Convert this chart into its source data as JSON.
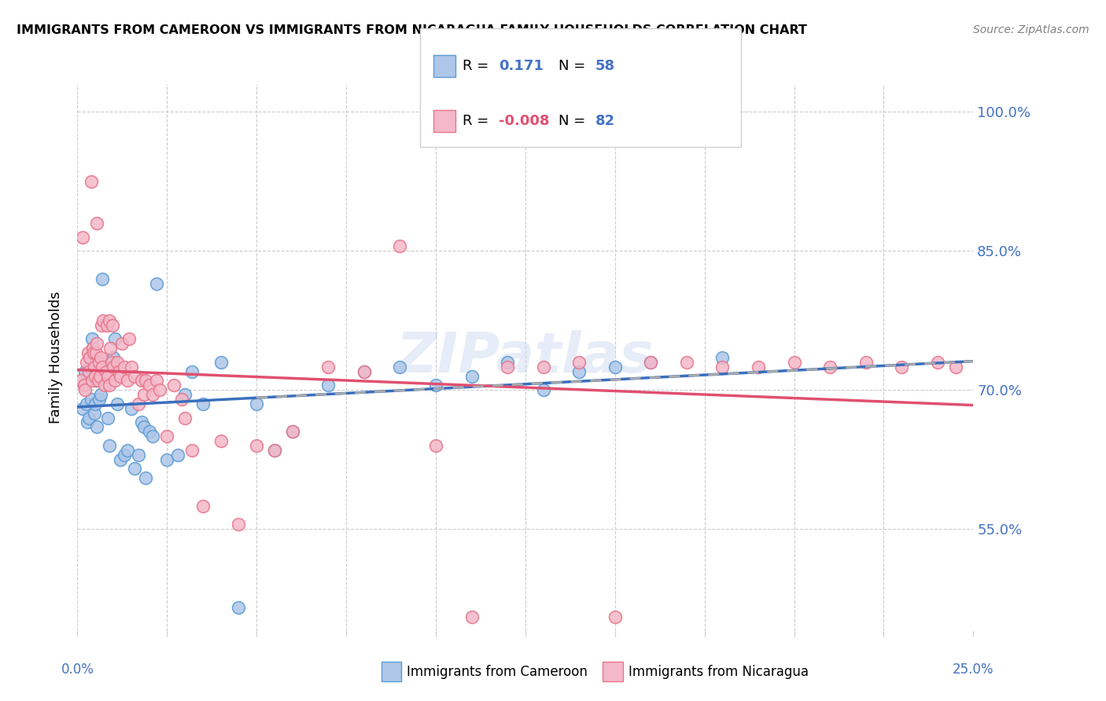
{
  "title": "IMMIGRANTS FROM CAMEROON VS IMMIGRANTS FROM NICARAGUA FAMILY HOUSEHOLDS CORRELATION CHART",
  "source": "Source: ZipAtlas.com",
  "ylabel": "Family Households",
  "yticks": [
    55.0,
    70.0,
    85.0,
    100.0
  ],
  "ytick_labels": [
    "55.0%",
    "70.0%",
    "85.0%",
    "100.0%"
  ],
  "xmin": 0.0,
  "xmax": 25.0,
  "ymin": 44.0,
  "ymax": 103.0,
  "cameroon_R": 0.171,
  "cameroon_N": 58,
  "nicaragua_R": -0.008,
  "nicaragua_N": 82,
  "cameroon_color": "#aec6e8",
  "nicaragua_color": "#f4b8c8",
  "cameroon_edge": "#5b9bd5",
  "nicaragua_edge": "#e8748a",
  "trend_cameroon_color": "#3a6fbd",
  "trend_nicaragua_color": "#e05070",
  "trend_dashed_color": "#aaaaaa",
  "watermark": "ZIPatlas",
  "cameroon_x": [
    0.15,
    0.18,
    0.22,
    0.25,
    0.28,
    0.32,
    0.35,
    0.38,
    0.4,
    0.42,
    0.45,
    0.48,
    0.5,
    0.52,
    0.55,
    0.6,
    0.65,
    0.7,
    0.8,
    0.85,
    0.9,
    0.95,
    1.0,
    1.05,
    1.1,
    1.2,
    1.3,
    1.4,
    1.5,
    1.6,
    1.7,
    1.8,
    1.85,
    1.9,
    2.0,
    2.1,
    2.2,
    2.5,
    2.8,
    3.0,
    3.2,
    3.5,
    4.0,
    4.5,
    5.0,
    5.5,
    6.0,
    7.0,
    8.0,
    9.0,
    10.0,
    11.0,
    12.0,
    13.0,
    14.0,
    15.0,
    16.0,
    18.0
  ],
  "cameroon_y": [
    68.0,
    70.5,
    72.0,
    68.5,
    66.5,
    67.0,
    72.5,
    69.0,
    75.5,
    74.5,
    73.0,
    67.5,
    68.5,
    71.0,
    66.0,
    69.0,
    69.5,
    82.0,
    73.0,
    67.0,
    64.0,
    72.5,
    73.5,
    75.5,
    68.5,
    62.5,
    63.0,
    63.5,
    68.0,
    61.5,
    63.0,
    66.5,
    66.0,
    60.5,
    65.5,
    65.0,
    81.5,
    62.5,
    63.0,
    69.5,
    72.0,
    68.5,
    73.0,
    46.5,
    68.5,
    63.5,
    65.5,
    70.5,
    72.0,
    72.5,
    70.5,
    71.5,
    73.0,
    70.0,
    72.0,
    72.5,
    73.0,
    73.5
  ],
  "nicaragua_x": [
    0.1,
    0.15,
    0.18,
    0.2,
    0.25,
    0.3,
    0.32,
    0.35,
    0.38,
    0.4,
    0.42,
    0.45,
    0.48,
    0.5,
    0.52,
    0.55,
    0.58,
    0.6,
    0.62,
    0.65,
    0.7,
    0.75,
    0.8,
    0.85,
    0.9,
    0.92,
    0.95,
    1.0,
    1.05,
    1.1,
    1.15,
    1.2,
    1.3,
    1.4,
    1.5,
    1.6,
    1.7,
    1.8,
    1.85,
    1.9,
    2.0,
    2.1,
    2.2,
    2.3,
    2.5,
    2.7,
    2.9,
    3.0,
    3.2,
    3.5,
    4.0,
    4.5,
    5.0,
    5.5,
    6.0,
    7.0,
    8.0,
    9.0,
    10.0,
    11.0,
    12.0,
    13.0,
    14.0,
    15.0,
    16.0,
    17.0,
    18.0,
    19.0,
    20.0,
    21.0,
    22.0,
    23.0,
    24.0,
    24.5,
    0.55,
    0.68,
    0.72,
    0.82,
    0.88,
    0.98,
    1.25,
    1.45
  ],
  "nicaragua_y": [
    71.0,
    86.5,
    70.5,
    70.0,
    73.0,
    74.0,
    72.0,
    73.5,
    92.5,
    71.0,
    74.5,
    74.0,
    72.5,
    71.5,
    74.0,
    75.0,
    71.0,
    73.0,
    71.5,
    73.5,
    72.5,
    70.5,
    72.0,
    71.5,
    70.5,
    74.5,
    73.0,
    72.5,
    71.0,
    73.0,
    72.0,
    71.5,
    72.5,
    71.0,
    72.5,
    71.5,
    68.5,
    71.0,
    69.5,
    71.0,
    70.5,
    69.5,
    71.0,
    70.0,
    65.0,
    70.5,
    69.0,
    67.0,
    63.5,
    57.5,
    64.5,
    55.5,
    64.0,
    63.5,
    65.5,
    72.5,
    72.0,
    85.5,
    64.0,
    45.5,
    72.5,
    72.5,
    73.0,
    45.5,
    73.0,
    73.0,
    72.5,
    72.5,
    73.0,
    72.5,
    73.0,
    72.5,
    73.0,
    72.5,
    88.0,
    77.0,
    77.5,
    77.0,
    77.5,
    77.0,
    75.0,
    75.5
  ]
}
